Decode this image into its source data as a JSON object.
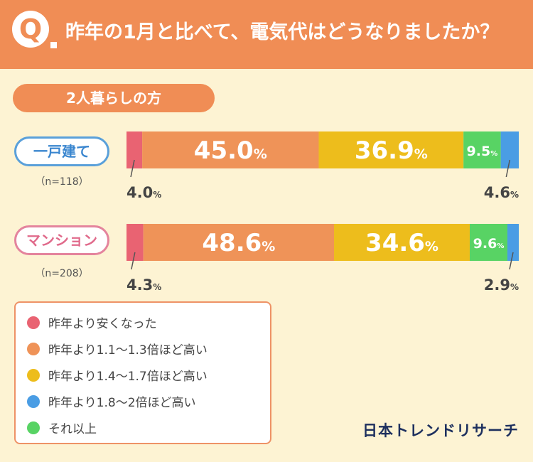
{
  "header": {
    "badge_letter": "Q",
    "question": "昨年の1月と比べて、電気代はどうなりましたか？"
  },
  "section_label": "2人暮らしの方",
  "chart_data": {
    "type": "bar",
    "orientation": "horizontal-stacked-100",
    "title": "昨年の1月と比べて、電気代はどうなりましたか？",
    "subtitle": "2人暮らしの方",
    "series_names": [
      "昨年より安くなった",
      "昨年より1.1〜1.3倍ほど高い",
      "昨年より1.4〜1.7倍ほど高い",
      "それ以上",
      "昨年より1.8〜2倍ほど高い"
    ],
    "series_colors": [
      "#e96372",
      "#ef9358",
      "#edbd1c",
      "#58d364",
      "#4a9de4"
    ],
    "rows": [
      {
        "category": "一戸建て",
        "n_label": "（n=118）",
        "values": [
          4.0,
          45.0,
          36.9,
          9.5,
          4.6
        ]
      },
      {
        "category": "マンション",
        "n_label": "（n=208）",
        "values": [
          4.3,
          48.6,
          34.6,
          9.6,
          2.9
        ]
      }
    ],
    "unit": "%"
  },
  "legend": {
    "items": [
      {
        "label": "昨年より安くなった",
        "color": "#e96372"
      },
      {
        "label": "昨年より1.1～1.3倍ほど高い",
        "color": "#ef9358"
      },
      {
        "label": "昨年より1.4～1.7倍ほど高い",
        "color": "#edbd1c"
      },
      {
        "label": "昨年より1.8～2倍ほど高い",
        "color": "#4a9de4"
      },
      {
        "label": "それ以上",
        "color": "#58d364"
      }
    ]
  },
  "brand": "日本トレンドリサーチ"
}
